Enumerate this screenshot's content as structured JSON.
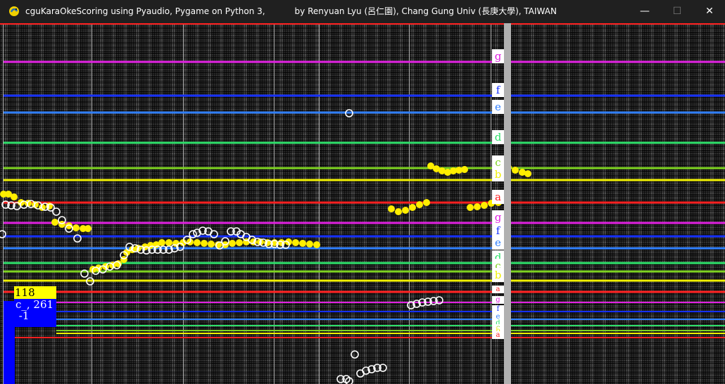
{
  "window": {
    "title": "cguKaraOkeScoring using Pyaudio, Pygame on Python 3,           by Renyuan Lyu (呂仁園), Chang Gung Univ (長庚大學), TAIWAN",
    "minimize_glyph": "—",
    "maximize_glyph": "☐",
    "close_glyph": "✕"
  },
  "colors": {
    "red": "#ff2020",
    "magenta": "#e020e0",
    "blue": "#1530ff",
    "sky": "#2f7fff",
    "green": "#2ee06a",
    "lime": "#7ed321",
    "yellow": "#f0f000",
    "sung_pitch": "#ffee00",
    "reference_pitch": "#ffffff"
  },
  "pitch_lines": [
    {
      "label": "g",
      "color": "magenta"
    },
    {
      "label": "f",
      "color": "blue"
    },
    {
      "label": "e",
      "color": "sky"
    },
    {
      "label": "d",
      "color": "green"
    },
    {
      "label": "c",
      "color": "lime"
    },
    {
      "label": "b",
      "color": "yellow"
    },
    {
      "label": "a",
      "color": "red"
    },
    {
      "label": "g",
      "color": "magenta"
    },
    {
      "label": "f",
      "color": "blue"
    },
    {
      "label": "e",
      "color": "sky"
    },
    {
      "label": "d",
      "color": "green"
    },
    {
      "label": "c",
      "color": "lime"
    },
    {
      "label": "b",
      "color": "yellow"
    },
    {
      "label": "a",
      "color": "red"
    },
    {
      "label": "g",
      "color": "magenta"
    },
    {
      "label": "f",
      "color": "blue"
    },
    {
      "label": "e",
      "color": "sky"
    },
    {
      "label": "d",
      "color": "green"
    },
    {
      "label": "c",
      "color": "lime"
    },
    {
      "label": "b",
      "color": "yellow"
    },
    {
      "label": "a",
      "color": "red"
    }
  ],
  "status": {
    "score": "118",
    "note_readout": "c_, 261\n -1"
  }
}
